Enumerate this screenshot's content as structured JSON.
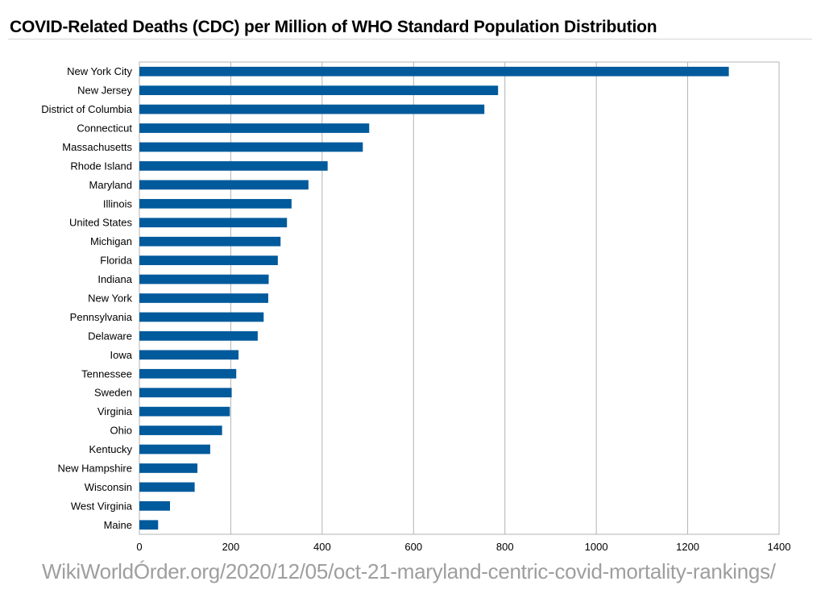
{
  "chart_data": {
    "type": "bar",
    "orientation": "horizontal",
    "title": "COVID-Related Deaths (CDC) per Million of WHO Standard Population Distribution",
    "xlabel": "",
    "ylabel": "",
    "categories": [
      "New York City",
      "New Jersey",
      "District of Columbia",
      "Connecticut",
      "Massachusetts",
      "Rhode Island",
      "Maryland",
      "Illinois",
      "United States",
      "Michigan",
      "Florida",
      "Indiana",
      "New York",
      "Pennsylvania",
      "Delaware",
      "Iowa",
      "Tennessee",
      "Sweden",
      "Virginia",
      "Ohio",
      "Kentucky",
      "New Hampshire",
      "Wisconsin",
      "West Virginia",
      "Maine"
    ],
    "values": [
      1290,
      785,
      755,
      503,
      489,
      412,
      370,
      333,
      323,
      309,
      303,
      283,
      282,
      272,
      259,
      217,
      212,
      202,
      198,
      181,
      155,
      127,
      121,
      67,
      41
    ],
    "xlim": [
      0,
      1400
    ],
    "xticks": [
      0,
      200,
      400,
      600,
      800,
      1000,
      1200,
      1400
    ],
    "grid": true,
    "bar_color": "#005a9c",
    "source_text": "WikiWorldÓrder.org/2020/12/05/oct-21-maryland-centric-covid-mortality-rankings/"
  }
}
